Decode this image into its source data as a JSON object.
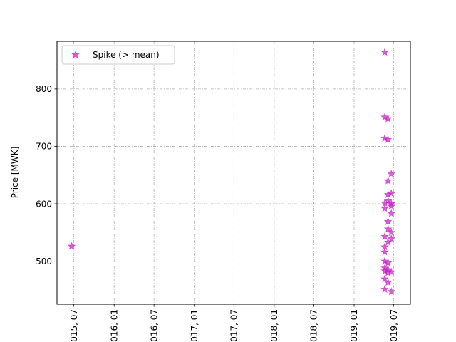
{
  "chart_data": {
    "type": "scatter",
    "title": "",
    "xlabel": "",
    "ylabel": "Price [MWK]",
    "x_type": "date",
    "x_tick_labels": [
      "2015, 07",
      "2016, 01",
      "2016, 07",
      "2017, 01",
      "2017, 07",
      "2018, 01",
      "2018, 07",
      "2019, 01",
      "2019, 07"
    ],
    "x_tick_dates": [
      "2015-07-01",
      "2016-01-01",
      "2016-07-01",
      "2017-01-01",
      "2017-07-01",
      "2018-01-01",
      "2018-07-01",
      "2019-01-01",
      "2019-07-01"
    ],
    "xlim": [
      "2015-04-15",
      "2019-09-15"
    ],
    "y_ticks": [
      500,
      600,
      700,
      800
    ],
    "ylim": [
      425,
      883
    ],
    "grid": true,
    "legend": {
      "placement": "top-left",
      "entries": [
        "Spike (> mean)"
      ]
    },
    "series": [
      {
        "name": "Spike (> mean)",
        "color": "#c71ec7",
        "marker": "star",
        "points": [
          {
            "x": "2015-06-21",
            "y": 526
          },
          {
            "x": "2019-05-21",
            "y": 864
          },
          {
            "x": "2019-05-21",
            "y": 751
          },
          {
            "x": "2019-05-21",
            "y": 714
          },
          {
            "x": "2019-05-21",
            "y": 601
          },
          {
            "x": "2019-05-21",
            "y": 592
          },
          {
            "x": "2019-05-21",
            "y": 543
          },
          {
            "x": "2019-05-21",
            "y": 525
          },
          {
            "x": "2019-05-21",
            "y": 516
          },
          {
            "x": "2019-05-21",
            "y": 500
          },
          {
            "x": "2019-05-21",
            "y": 488
          },
          {
            "x": "2019-05-21",
            "y": 483
          },
          {
            "x": "2019-05-21",
            "y": 469
          },
          {
            "x": "2019-05-21",
            "y": 451
          },
          {
            "x": "2019-06-05",
            "y": 748
          },
          {
            "x": "2019-06-05",
            "y": 712
          },
          {
            "x": "2019-06-05",
            "y": 640
          },
          {
            "x": "2019-06-05",
            "y": 616
          },
          {
            "x": "2019-06-05",
            "y": 605
          },
          {
            "x": "2019-06-05",
            "y": 569
          },
          {
            "x": "2019-06-05",
            "y": 556
          },
          {
            "x": "2019-06-05",
            "y": 533
          },
          {
            "x": "2019-06-05",
            "y": 497
          },
          {
            "x": "2019-06-05",
            "y": 485
          },
          {
            "x": "2019-06-05",
            "y": 480
          },
          {
            "x": "2019-06-05",
            "y": 463
          },
          {
            "x": "2019-06-20",
            "y": 652
          },
          {
            "x": "2019-06-20",
            "y": 618
          },
          {
            "x": "2019-06-20",
            "y": 600
          },
          {
            "x": "2019-06-20",
            "y": 596
          },
          {
            "x": "2019-06-20",
            "y": 583
          },
          {
            "x": "2019-06-20",
            "y": 550
          },
          {
            "x": "2019-06-20",
            "y": 539
          },
          {
            "x": "2019-06-20",
            "y": 481
          },
          {
            "x": "2019-06-20",
            "y": 447
          }
        ]
      }
    ]
  }
}
